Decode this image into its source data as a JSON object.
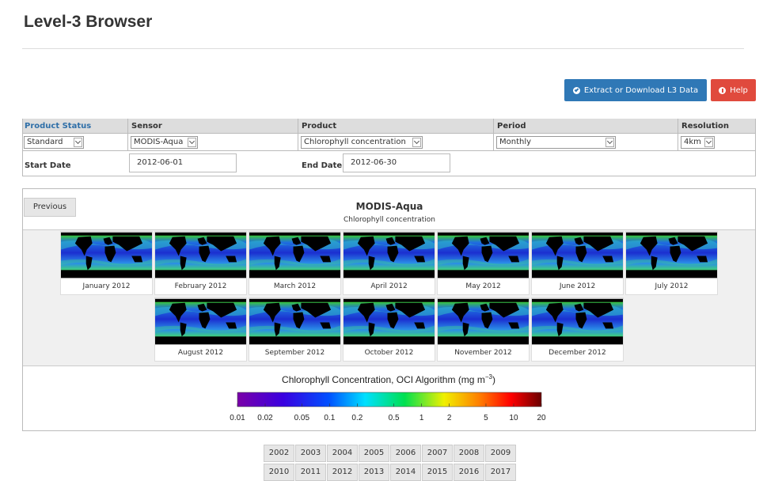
{
  "header": {
    "title": "Level-3 Browser"
  },
  "buttons": {
    "extract": "Extract or Download L3 Data",
    "help": "Help"
  },
  "form": {
    "headers": [
      "Product Status",
      "Sensor",
      "Product",
      "Period",
      "Resolution"
    ],
    "selects": [
      "Standard",
      "MODIS-Aqua",
      "Chlorophyll concentration",
      "Monthly",
      "4km"
    ],
    "start_date_label": "Start Date",
    "start_date": "2012-06-01",
    "end_date_label": "End Date",
    "end_date": "2012-06-30"
  },
  "panel": {
    "previous": "Previous",
    "title": "MODIS-Aqua",
    "subtitle": "Chlorophyll concentration",
    "thumbnails": [
      "January 2012",
      "February 2012",
      "March 2012",
      "April 2012",
      "May 2012",
      "June 2012",
      "July 2012",
      "August 2012",
      "September 2012",
      "October 2012",
      "November 2012",
      "December 2012"
    ]
  },
  "colorbar": {
    "title": "Chlorophyll Concentration, OCI Algorithm (mg m",
    "superscript": "−3",
    "title_end": ")",
    "scale": "log",
    "lim": [
      0.01,
      20
    ],
    "ticks": [
      0.01,
      0.02,
      0.05,
      0.1,
      0.2,
      0.5,
      1,
      2,
      5,
      10,
      20
    ]
  },
  "years": [
    2002,
    2003,
    2004,
    2005,
    2006,
    2007,
    2008,
    2009,
    2010,
    2011,
    2012,
    2013,
    2014,
    2015,
    2016,
    2017
  ]
}
